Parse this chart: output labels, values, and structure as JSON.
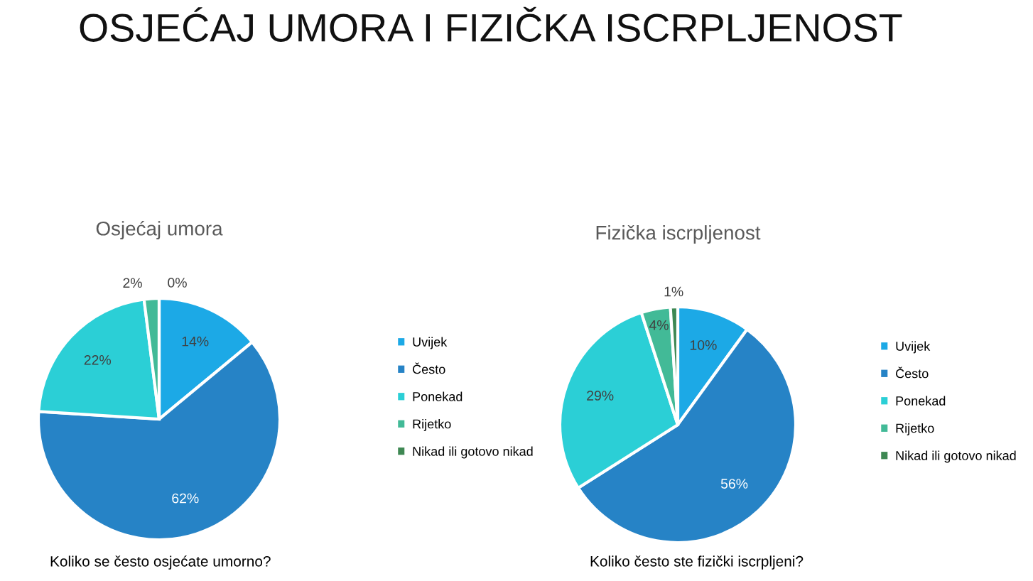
{
  "chart_data": [
    {
      "type": "pie",
      "title": "Osjećaj umora",
      "categories": [
        "Uvijek",
        "Često",
        "Ponekad",
        "Rijetko",
        "Nikad ili gotovo nikad"
      ],
      "values": [
        14,
        62,
        22,
        2,
        0
      ],
      "value_labels": [
        "14%",
        "62%",
        "22%",
        "2%",
        "0%"
      ],
      "colors": [
        "#1ca9e6",
        "#2683c6",
        "#2bcfd6",
        "#42ba97",
        "#3e8853"
      ],
      "legend": "right",
      "annotations": [
        "OSJEĆAJ UMORA I FIZIČKA ISCRPLJENOST",
        "Koliko se često osjećate umorno?"
      ]
    },
    {
      "type": "pie",
      "title": "Fizička iscrpljenost",
      "categories": [
        "Uvijek",
        "Često",
        "Ponekad",
        "Rijetko",
        "Nikad ili gotovo nikad"
      ],
      "values": [
        10,
        56,
        29,
        4,
        1
      ],
      "value_labels": [
        "10%",
        "56%",
        "29%",
        "4%",
        "1%"
      ],
      "colors": [
        "#1ca9e6",
        "#2683c6",
        "#2bcfd6",
        "#42ba97",
        "#3e8853"
      ],
      "legend": "right",
      "annotations": [
        "Koliko često ste fizički iscrpljeni?"
      ]
    }
  ]
}
